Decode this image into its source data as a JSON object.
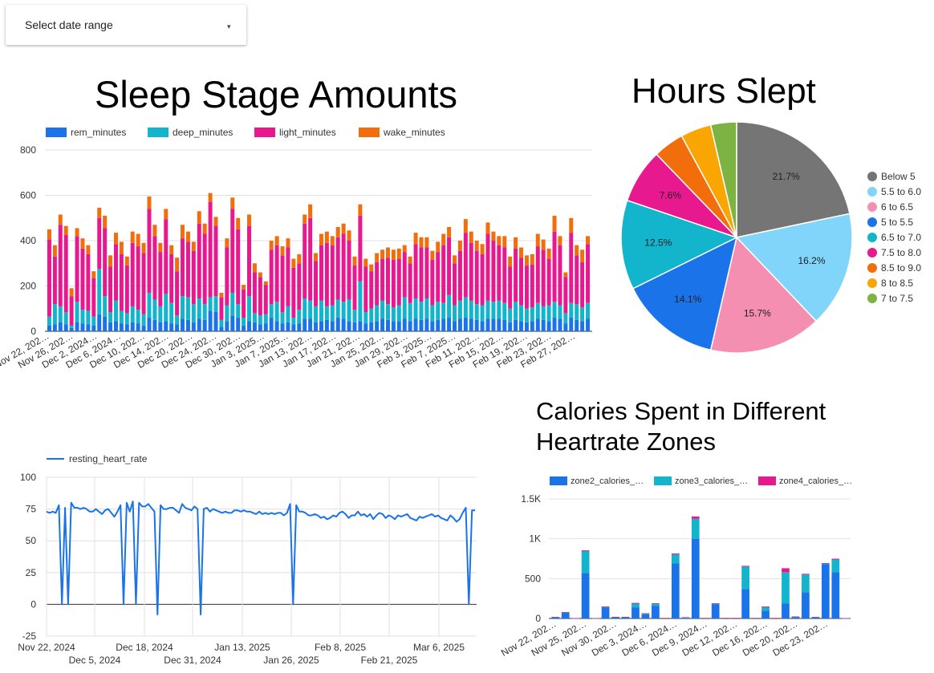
{
  "date_select": {
    "label": "Select date range",
    "arrow": "▾"
  },
  "colors": {
    "rem": "#1a73e8",
    "deep": "#12b5cb",
    "light": "#e8188f",
    "wake": "#f26d0c",
    "grid": "#e0e0e0",
    "axis": "#333333",
    "line": "#1a73e8"
  },
  "chart_data": [
    {
      "id": "sleep_stages",
      "type": "bar",
      "stacked": true,
      "title": "Sleep Stage Amounts",
      "ylim": [
        0,
        800
      ],
      "yticks": [
        "800",
        "600",
        "400",
        "200",
        "0"
      ],
      "ytick_values": [
        800,
        600,
        400,
        200,
        0
      ],
      "legend": [
        "rem_minutes",
        "deep_minutes",
        "light_minutes",
        "wake_minutes"
      ],
      "xtick_labels": [
        "Nov 22, 202…",
        "Nov 26, 202…",
        "Dec 2, 2024…",
        "Dec 6, 2024…",
        "Dec 10, 202…",
        "Dec 14, 202…",
        "Dec 20, 202…",
        "Dec 24, 202…",
        "Dec 30, 202…",
        "Jan 3, 2025…",
        "Jan 7, 2025…",
        "Jan 13, 202…",
        "Jan 17, 202…",
        "Jan 21, 202…",
        "Jan 25, 202…",
        "Jan 29, 202…",
        "Feb 3, 2025…",
        "Feb 7, 2025…",
        "Feb 11, 202…",
        "Feb 15, 202…",
        "Feb 19, 202…",
        "Feb 23, 202…",
        "Feb 27, 202…"
      ],
      "totals": [
        450,
        380,
        515,
        465,
        190,
        455,
        410,
        380,
        265,
        545,
        510,
        335,
        435,
        395,
        330,
        440,
        430,
        390,
        595,
        470,
        390,
        540,
        380,
        325,
        470,
        440,
        395,
        530,
        475,
        610,
        505,
        170,
        410,
        590,
        500,
        205,
        515,
        300,
        260,
        220,
        400,
        420,
        375,
        410,
        320,
        340,
        515,
        560,
        345,
        430,
        440,
        420,
        460,
        475,
        445,
        330,
        560,
        320,
        295,
        345,
        360,
        370,
        360,
        365,
        380,
        330,
        435,
        415,
        415,
        355,
        395,
        430,
        460,
        335,
        400,
        495,
        440,
        400,
        385,
        480,
        440,
        420,
        420,
        330,
        415,
        370,
        335,
        340,
        430,
        405,
        365,
        510,
        420,
        260,
        500,
        380,
        360,
        420
      ],
      "rem": [
        25,
        30,
        40,
        30,
        15,
        40,
        35,
        30,
        25,
        75,
        65,
        40,
        45,
        35,
        30,
        40,
        35,
        25,
        60,
        50,
        40,
        45,
        35,
        30,
        55,
        50,
        40,
        55,
        50,
        90,
        85,
        20,
        45,
        70,
        60,
        25,
        45,
        40,
        30,
        35,
        60,
        45,
        35,
        40,
        30,
        35,
        55,
        55,
        40,
        45,
        50,
        45,
        60,
        55,
        45,
        40,
        45,
        35,
        40,
        45,
        55,
        50,
        45,
        45,
        55,
        45,
        55,
        50,
        55,
        45,
        50,
        55,
        60,
        45,
        55,
        60,
        55,
        50,
        45,
        55,
        55,
        55,
        50,
        40,
        50,
        45,
        40,
        45,
        55,
        50,
        45,
        60,
        55,
        35,
        60,
        50,
        45,
        55
      ],
      "deep": [
        40,
        90,
        70,
        55,
        10,
        90,
        60,
        60,
        40,
        200,
        90,
        45,
        90,
        55,
        50,
        70,
        60,
        50,
        110,
        90,
        70,
        120,
        90,
        40,
        100,
        100,
        80,
        90,
        70,
        60,
        70,
        30,
        70,
        100,
        60,
        35,
        110,
        40,
        40,
        40,
        60,
        85,
        50,
        70,
        30,
        60,
        90,
        80,
        70,
        90,
        60,
        70,
        80,
        75,
        95,
        55,
        175,
        50,
        60,
        70,
        80,
        70,
        60,
        70,
        95,
        80,
        90,
        80,
        90,
        70,
        80,
        70,
        100,
        70,
        80,
        90,
        80,
        70,
        70,
        80,
        75,
        80,
        75,
        60,
        80,
        70,
        60,
        60,
        70,
        60,
        70,
        70,
        60,
        45,
        65,
        70,
        60,
        70
      ],
      "light": [
        340,
        210,
        360,
        340,
        130,
        290,
        270,
        250,
        170,
        225,
        300,
        200,
        250,
        250,
        210,
        280,
        280,
        270,
        370,
        280,
        240,
        330,
        215,
        195,
        255,
        245,
        235,
        330,
        310,
        420,
        310,
        100,
        255,
        370,
        330,
        125,
        310,
        180,
        170,
        130,
        240,
        250,
        250,
        260,
        220,
        205,
        330,
        365,
        200,
        245,
        280,
        265,
        275,
        300,
        260,
        195,
        290,
        200,
        165,
        190,
        185,
        205,
        210,
        205,
        200,
        175,
        240,
        240,
        225,
        200,
        220,
        255,
        255,
        185,
        220,
        285,
        255,
        235,
        225,
        295,
        270,
        245,
        245,
        185,
        235,
        210,
        190,
        190,
        250,
        250,
        205,
        310,
        265,
        160,
        310,
        215,
        200,
        260
      ],
      "wake": [
        45,
        50,
        45,
        40,
        35,
        35,
        45,
        40,
        30,
        45,
        55,
        50,
        50,
        55,
        40,
        50,
        55,
        45,
        55,
        50,
        40,
        45,
        40,
        60,
        60,
        45,
        40,
        55,
        45,
        40,
        40,
        20,
        40,
        50,
        50,
        20,
        50,
        40,
        20,
        15,
        40,
        40,
        40,
        40,
        40,
        40,
        40,
        60,
        35,
        50,
        50,
        40,
        45,
        45,
        45,
        40,
        50,
        35,
        30,
        40,
        40,
        45,
        45,
        45,
        30,
        30,
        50,
        45,
        45,
        40,
        45,
        50,
        45,
        35,
        45,
        60,
        50,
        45,
        45,
        50,
        40,
        40,
        50,
        45,
        50,
        45,
        45,
        45,
        55,
        45,
        45,
        70,
        40,
        20,
        65,
        45,
        55,
        35
      ]
    },
    {
      "id": "hours_slept",
      "type": "pie",
      "title": "Hours Slept",
      "labels": [
        "Below 5",
        "5.5 to 6.0",
        "6 to 6.5",
        "5 to 5.5",
        "6.5 to 7.0",
        "7.5 to 8.0",
        "8.5 to 9.0",
        "8 to 8.5",
        "7 to 7.5"
      ],
      "values": [
        21.7,
        16.2,
        15.7,
        14.1,
        12.5,
        7.6,
        4.3,
        4.3,
        3.6
      ],
      "value_labels": [
        "21.7%",
        "16.2%",
        "15.7%",
        "14.1%",
        "12.5%",
        "7.6%",
        "",
        "",
        ""
      ],
      "colors": [
        "#757575",
        "#81d4fa",
        "#f48fb1",
        "#1a73e8",
        "#12b5cb",
        "#e8188f",
        "#f26d0c",
        "#f9a602",
        "#7cb342"
      ]
    },
    {
      "id": "resting_hr",
      "type": "line",
      "title": "",
      "legend": [
        "resting_heart_rate"
      ],
      "ylim": [
        -25,
        100
      ],
      "yticks": [
        "100",
        "75",
        "50",
        "25",
        "0",
        "-25"
      ],
      "ytick_values": [
        100,
        75,
        50,
        25,
        0,
        -25
      ],
      "x_start": "Nov 22, 2024",
      "x_end": "Mar 10, 2025",
      "xticks_row1": [
        "Nov 22, 2024",
        "Dec 18, 2024",
        "Jan 13, 2025",
        "Feb 8, 2025",
        "Mar 6, 2025"
      ],
      "xticks_row2": [
        "Dec 5, 2024",
        "Dec 31, 2024",
        "Jan 26, 2025",
        "Feb 21, 2025"
      ],
      "values": [
        73,
        72,
        73,
        72,
        78,
        0,
        76,
        0,
        80,
        76,
        76,
        75,
        76,
        75,
        73,
        73,
        75,
        73,
        71,
        74,
        75,
        72,
        69,
        73,
        78,
        0,
        80,
        73,
        81,
        0,
        80,
        77,
        77,
        79,
        76,
        73,
        -8,
        78,
        75,
        75,
        76,
        76,
        74,
        72,
        79,
        76,
        75,
        74,
        77,
        75,
        -8,
        75,
        76,
        73,
        75,
        74,
        73,
        72,
        73,
        72,
        72,
        74,
        74,
        73,
        74,
        73,
        73,
        72,
        71,
        73,
        71,
        72,
        71,
        72,
        71,
        72,
        72,
        70,
        72,
        79,
        0,
        78,
        73,
        73,
        72,
        70,
        70,
        71,
        70,
        68,
        69,
        67,
        68,
        70,
        69,
        72,
        73,
        71,
        68,
        70,
        70,
        73,
        70,
        71,
        69,
        71,
        67,
        70,
        72,
        71,
        68,
        70,
        69,
        67,
        70,
        69,
        70,
        71,
        68,
        67,
        66,
        69,
        68,
        69,
        70,
        71,
        69,
        70,
        68,
        67,
        66,
        70,
        68,
        65,
        67,
        72,
        76,
        0,
        74,
        74
      ]
    },
    {
      "id": "hr_zone_calories",
      "type": "bar",
      "stacked": true,
      "title": "Calories Spent in Different Heartrate Zones",
      "ylim": [
        0,
        1500
      ],
      "yticks": [
        "1.5K",
        "1K",
        "500",
        "0"
      ],
      "ytick_values": [
        1500,
        1000,
        500,
        0
      ],
      "legend": [
        "zone2_calories_…",
        "zone3_calories_…",
        "zone4_calories_…"
      ],
      "xtick_labels": [
        "Nov 22, 202…",
        "Nov 25, 202…",
        "Nov 30, 202…",
        "Dec 3, 2024…",
        "Dec 6, 2024…",
        "Dec 9, 2024…",
        "Dec 12, 202…",
        "Dec 16, 202…",
        "Dec 20, 202…",
        "Dec 23, 202…"
      ],
      "zone2": [
        15,
        70,
        5,
        570,
        5,
        140,
        20,
        20,
        140,
        50,
        160,
        0,
        690,
        10,
        1000,
        0,
        180,
        0,
        0,
        370,
        0,
        95,
        0,
        190,
        20,
        330,
        15,
        680,
        580,
        5
      ],
      "zone3": [
        5,
        10,
        0,
        280,
        0,
        10,
        0,
        0,
        50,
        15,
        30,
        0,
        120,
        5,
        250,
        0,
        10,
        0,
        0,
        280,
        0,
        50,
        0,
        390,
        5,
        220,
        5,
        15,
        160,
        0
      ],
      "zone4": [
        0,
        0,
        0,
        5,
        0,
        0,
        0,
        0,
        5,
        0,
        0,
        0,
        5,
        0,
        30,
        0,
        0,
        0,
        0,
        10,
        0,
        5,
        0,
        50,
        0,
        10,
        0,
        0,
        10,
        0
      ]
    }
  ]
}
